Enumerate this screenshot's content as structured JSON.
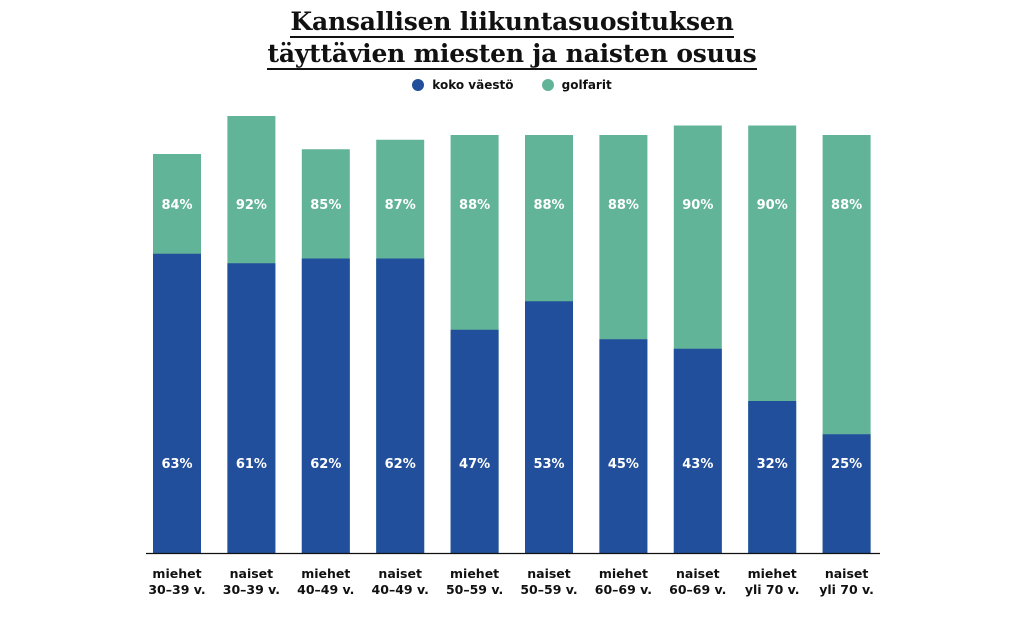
{
  "chart_data": {
    "type": "bar",
    "title_lines": [
      "Kansallisen liikuntasuosituksen",
      "täyttävien miesten ja naisten osuus"
    ],
    "categories": [
      [
        "miehet",
        "30–39 v."
      ],
      [
        "naiset",
        "30–39 v."
      ],
      [
        "miehet",
        "40–49 v."
      ],
      [
        "naiset",
        "40–49 v."
      ],
      [
        "miehet",
        "50–59 v."
      ],
      [
        "naiset",
        "50–59 v."
      ],
      [
        "miehet",
        "60–69 v."
      ],
      [
        "naiset",
        "60–69 v."
      ],
      [
        "miehet",
        "yli 70 v."
      ],
      [
        "naiset",
        "yli 70 v."
      ]
    ],
    "series": [
      {
        "name": "koko väestö",
        "color": "#224f9b",
        "values": [
          63,
          61,
          62,
          62,
          47,
          53,
          45,
          43,
          32,
          25
        ]
      },
      {
        "name": "golfarit",
        "color": "#62b498",
        "values": [
          84,
          92,
          85,
          87,
          88,
          88,
          88,
          90,
          90,
          88
        ]
      }
    ],
    "value_suffix": "%",
    "ylim": [
      0,
      100
    ],
    "legend_position": "top-center",
    "grid": false
  }
}
